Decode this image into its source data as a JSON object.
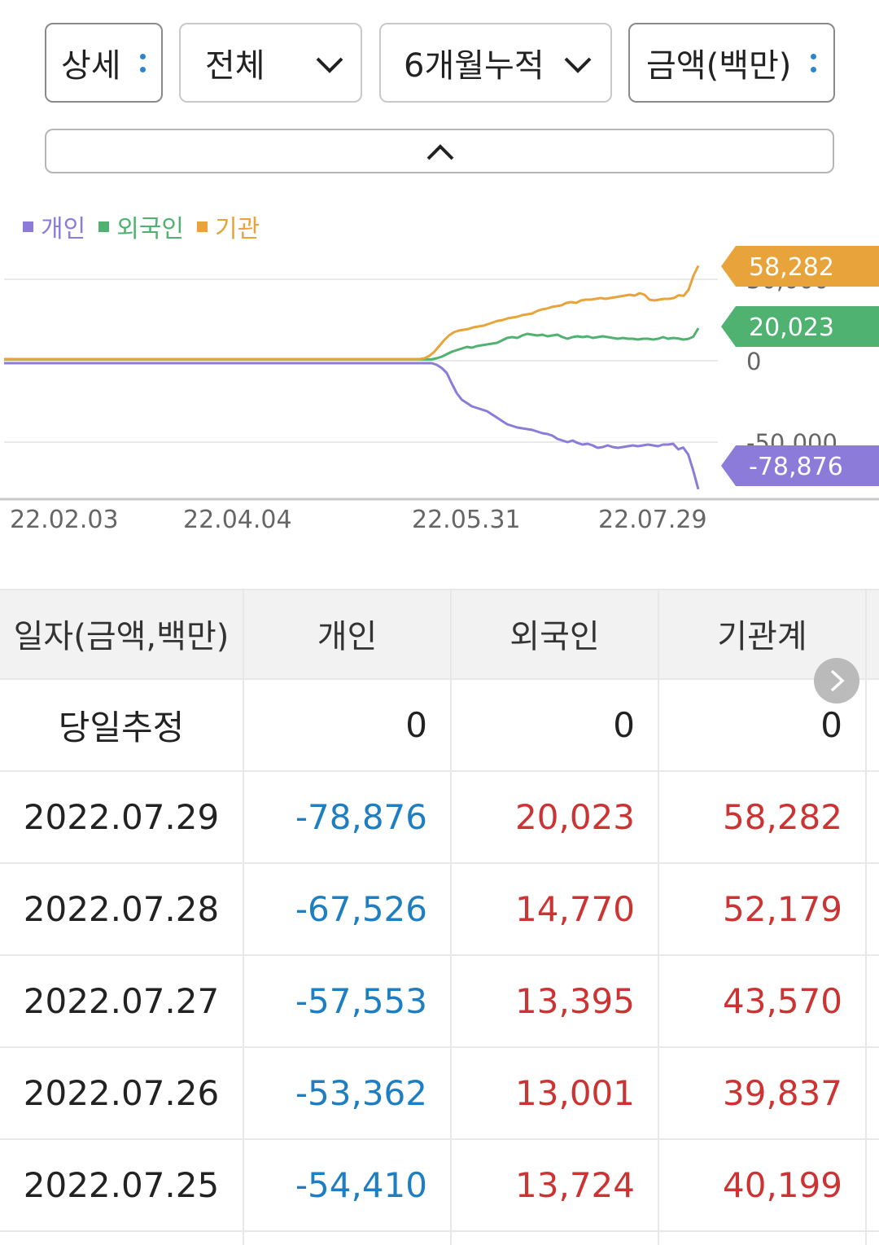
{
  "controls": {
    "detail": "상세",
    "scope": "전체",
    "period": "6개월누적",
    "unit": "금액(백만)"
  },
  "chart_data": {
    "type": "line",
    "x_labels": [
      "22.02.03",
      "22.04.04",
      "22.05.31",
      "22.07.29"
    ],
    "y_ticks": [
      50000,
      0,
      -50000
    ],
    "ylim": [
      -81000,
      58500
    ],
    "grid": true,
    "legend_position": "top-left",
    "series": [
      {
        "name": "개인",
        "color": "#8c7bd8",
        "last_value": -78876,
        "values": [
          -1500,
          -1500,
          -1500,
          -1500,
          -1500,
          -1500,
          -1500,
          -1500,
          -1500,
          -1500,
          -1500,
          -1500,
          -1500,
          -1500,
          -1500,
          -1500,
          -1500,
          -1500,
          -1500,
          -1500,
          -1500,
          -1500,
          -1500,
          -1500,
          -1500,
          -1500,
          -1500,
          -1500,
          -1500,
          -1500,
          -1500,
          -1500,
          -1500,
          -1500,
          -1500,
          -1500,
          -1500,
          -1500,
          -1500,
          -1500,
          -1500,
          -1500,
          -1500,
          -1500,
          -1500,
          -1500,
          -1500,
          -1500,
          -1500,
          -1500,
          -1500,
          -1500,
          -1500,
          -1500,
          -1500,
          -1500,
          -1500,
          -1500,
          -1500,
          -1500,
          -1500,
          -1500,
          -1500,
          -1500,
          -1500,
          -1500,
          -1500,
          -1500,
          -1500,
          -1500,
          -1500,
          -1500,
          -1500,
          -1500,
          -1500,
          -1500,
          -1500,
          -1500,
          -1500,
          -1500,
          -1500,
          -1500,
          -1500,
          -1500,
          -1500,
          -1500,
          -2500,
          -4500,
          -7500,
          -14000,
          -20000,
          -24000,
          -26000,
          -28000,
          -29000,
          -30000,
          -31000,
          -33000,
          -35000,
          -37000,
          -39000,
          -40000,
          -41000,
          -41500,
          -42000,
          -42500,
          -43500,
          -44500,
          -45000,
          -46000,
          -48000,
          -49000,
          -50000,
          -49000,
          -50500,
          -51500,
          -51000,
          -52000,
          -53500,
          -53000,
          -52000,
          -53000,
          -53500,
          -53000,
          -52500,
          -52000,
          -52500,
          -52000,
          -51500,
          -52000,
          -52500,
          -51500,
          -51500,
          -51000,
          -54410,
          -53362,
          -57553,
          -67526,
          -78876
        ]
      },
      {
        "name": "외국인",
        "color": "#4fb270",
        "last_value": 20023,
        "values": [
          800,
          800,
          800,
          800,
          800,
          800,
          800,
          800,
          800,
          800,
          800,
          800,
          800,
          800,
          800,
          800,
          800,
          800,
          800,
          800,
          800,
          800,
          800,
          800,
          800,
          800,
          800,
          800,
          800,
          800,
          800,
          800,
          800,
          800,
          800,
          800,
          800,
          800,
          800,
          800,
          800,
          800,
          800,
          800,
          800,
          800,
          800,
          800,
          800,
          800,
          800,
          800,
          800,
          800,
          800,
          800,
          800,
          800,
          800,
          800,
          800,
          800,
          800,
          800,
          800,
          800,
          800,
          800,
          800,
          800,
          800,
          800,
          800,
          800,
          800,
          800,
          800,
          800,
          800,
          800,
          800,
          800,
          800,
          800,
          800,
          800,
          1500,
          2500,
          4000,
          5500,
          6500,
          7500,
          8500,
          8000,
          9000,
          9500,
          10000,
          10500,
          11000,
          12500,
          14000,
          14500,
          14000,
          15500,
          16500,
          16000,
          15500,
          16000,
          15000,
          15500,
          16000,
          14500,
          13500,
          14500,
          15000,
          14500,
          15000,
          14000,
          14500,
          15000,
          14500,
          14000,
          13500,
          14000,
          13500,
          13500,
          13000,
          13500,
          13500,
          13000,
          13500,
          14500,
          13500,
          14000,
          13724,
          13001,
          13395,
          14770,
          20023
        ]
      },
      {
        "name": "기관",
        "color": "#e8a33a",
        "last_value": 58282,
        "values": [
          1000,
          1000,
          1000,
          1000,
          1000,
          1000,
          1000,
          1000,
          1000,
          1000,
          1000,
          1000,
          1000,
          1000,
          1000,
          1000,
          1000,
          1000,
          1000,
          1000,
          1000,
          1000,
          1000,
          1000,
          1000,
          1000,
          1000,
          1000,
          1000,
          1000,
          1000,
          1000,
          1000,
          1000,
          1000,
          1000,
          1000,
          1000,
          1000,
          1000,
          1000,
          1000,
          1000,
          1000,
          1000,
          1000,
          1000,
          1000,
          1000,
          1000,
          1000,
          1000,
          1000,
          1000,
          1000,
          1000,
          1000,
          1000,
          1000,
          1000,
          1000,
          1000,
          1000,
          1000,
          1000,
          1000,
          1000,
          1000,
          1000,
          1000,
          1000,
          1000,
          1000,
          1000,
          1000,
          1000,
          1000,
          1000,
          1000,
          1000,
          1000,
          1000,
          1000,
          1000,
          1000,
          1000,
          1500,
          3000,
          5500,
          9000,
          12500,
          15500,
          17500,
          18500,
          19000,
          19500,
          20500,
          21000,
          21500,
          22500,
          23500,
          24500,
          25000,
          26000,
          26500,
          27000,
          28000,
          28500,
          29000,
          30500,
          31500,
          32000,
          33000,
          33500,
          34000,
          35500,
          36000,
          35500,
          37000,
          37500,
          37500,
          38000,
          38500,
          38000,
          38500,
          39000,
          39500,
          40000,
          40500,
          40000,
          41500,
          40500,
          37500,
          37000,
          37500,
          38000,
          38000,
          38500,
          40199,
          39837,
          43570,
          52179,
          58282
        ]
      }
    ]
  },
  "table": {
    "headers": [
      "일자(금액,백만)",
      "개인",
      "외국인",
      "기관계"
    ],
    "rows": [
      {
        "date": "당일추정",
        "individual": "0",
        "foreign": "0",
        "institution": "0"
      },
      {
        "date": "2022.07.29",
        "individual": "-78,876",
        "foreign": "20,023",
        "institution": "58,282"
      },
      {
        "date": "2022.07.28",
        "individual": "-67,526",
        "foreign": "14,770",
        "institution": "52,179"
      },
      {
        "date": "2022.07.27",
        "individual": "-57,553",
        "foreign": "13,395",
        "institution": "43,570"
      },
      {
        "date": "2022.07.26",
        "individual": "-53,362",
        "foreign": "13,001",
        "institution": "39,837"
      },
      {
        "date": "2022.07.25",
        "individual": "-54,410",
        "foreign": "13,724",
        "institution": "40,199"
      }
    ]
  }
}
